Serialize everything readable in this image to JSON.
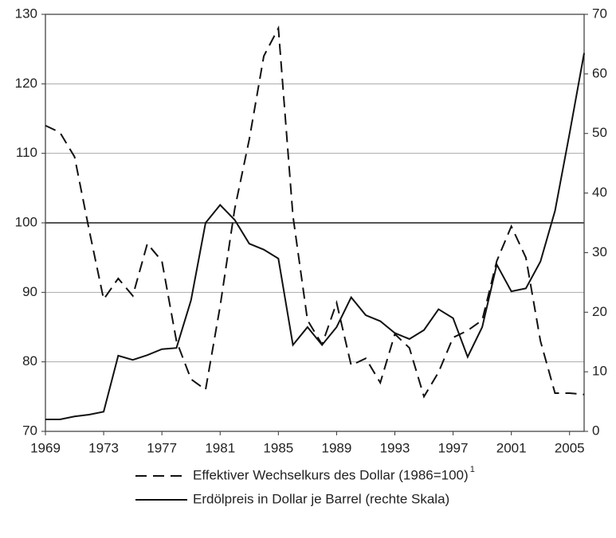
{
  "chart_data": {
    "type": "line",
    "x": [
      1969,
      1970,
      1971,
      1972,
      1973,
      1974,
      1975,
      1976,
      1977,
      1978,
      1979,
      1980,
      1981,
      1982,
      1983,
      1984,
      1985,
      1986,
      1987,
      1988,
      1989,
      1990,
      1991,
      1992,
      1993,
      1994,
      1995,
      1996,
      1997,
      1998,
      1999,
      2000,
      2001,
      2002,
      2003,
      2004,
      2005,
      2006
    ],
    "series": [
      {
        "name": "Effektiver Wechselkurs des Dollar (1986=100)",
        "color": "#111111",
        "dash": true,
        "axis": "y",
        "values": [
          114,
          113,
          109.5,
          99,
          89,
          92,
          89.5,
          97,
          94.5,
          83,
          77.5,
          76,
          88,
          102,
          112,
          124,
          128,
          101,
          86,
          82.5,
          88.5,
          79.5,
          80.5,
          77,
          84,
          82,
          75,
          78.5,
          83.5,
          84.5,
          86,
          94.5,
          99.5,
          95,
          83,
          75.5,
          75.5,
          75.3
        ]
      },
      {
        "name": "Erdölpreis in Dollar je Barrel (rechte Skala)",
        "color": "#111111",
        "dash": false,
        "axis": "y2",
        "values": [
          2,
          2,
          2.5,
          2.8,
          3.3,
          12.7,
          12,
          12.8,
          13.8,
          14,
          22,
          35,
          38,
          35.5,
          31.5,
          30.5,
          29,
          14.5,
          17.5,
          14.5,
          17.5,
          22.5,
          19.5,
          18.5,
          16.5,
          15.5,
          17,
          20.5,
          19,
          12.5,
          17.5,
          28,
          23.5,
          24,
          28.5,
          37,
          50,
          63.5
        ]
      }
    ],
    "legend_footnote": "1",
    "xlim": [
      1969,
      2006
    ],
    "xticks": [
      1969,
      1973,
      1977,
      1981,
      1985,
      1989,
      1993,
      1997,
      2001,
      2005
    ],
    "ylim": [
      70,
      130
    ],
    "yticks": [
      70,
      80,
      90,
      100,
      110,
      120,
      130
    ],
    "y2lim": [
      0,
      70
    ],
    "y2ticks": [
      0,
      10,
      20,
      30,
      40,
      50,
      60,
      70
    ],
    "grid": true,
    "highlight_y": 100
  }
}
